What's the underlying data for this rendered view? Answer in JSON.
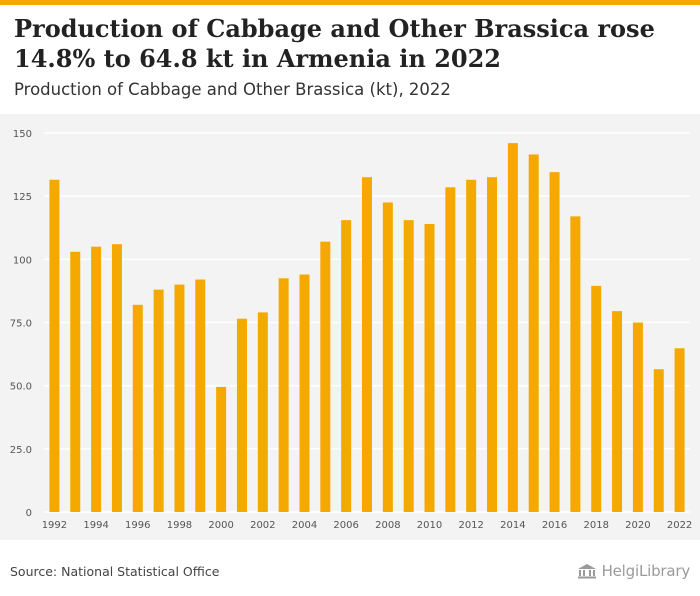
{
  "headline": "Production of Cabbage and Other Brassica rose 14.8% to 64.8 kt in Armenia in 2022",
  "subtitle": "Production of Cabbage and Other Brassica (kt), 2022",
  "source": "Source: National Statistical Office",
  "logo_text": "HelgiLibrary",
  "colors": {
    "bar": "#f5a800",
    "panel": "#f3f3f3",
    "grid": "#ffffff",
    "accent": "#f5a800"
  },
  "chart_data": {
    "type": "bar",
    "title": "Production of Cabbage and Other Brassica (kt), 2022",
    "xlabel": "",
    "ylabel": "",
    "categories": [
      "1992",
      "1993",
      "1994",
      "1995",
      "1996",
      "1997",
      "1998",
      "1999",
      "2000",
      "2001",
      "2002",
      "2003",
      "2004",
      "2005",
      "2006",
      "2007",
      "2008",
      "2009",
      "2010",
      "2011",
      "2012",
      "2013",
      "2014",
      "2015",
      "2016",
      "2017",
      "2018",
      "2019",
      "2020",
      "2021",
      "2022"
    ],
    "x_tick_labels": [
      "1992",
      "1994",
      "1996",
      "1998",
      "2000",
      "2002",
      "2004",
      "2006",
      "2008",
      "2010",
      "2012",
      "2014",
      "2016",
      "2018",
      "2020",
      "2022"
    ],
    "values": [
      131.5,
      103,
      105,
      106,
      82,
      88,
      90,
      92,
      49.5,
      76.5,
      79,
      92.5,
      94,
      107,
      115.5,
      132.5,
      122.5,
      115.5,
      114,
      128.5,
      131.5,
      132.5,
      146,
      141.5,
      134.5,
      117,
      89.5,
      79.5,
      75,
      56.5,
      64.8
    ],
    "y_ticks": [
      "0",
      "25.0",
      "50.0",
      "75.0",
      "100",
      "125",
      "150"
    ],
    "y_tick_values": [
      0,
      25,
      50,
      75,
      100,
      125,
      150
    ],
    "ylim": [
      0,
      150
    ],
    "grid": true,
    "legend": "none"
  }
}
